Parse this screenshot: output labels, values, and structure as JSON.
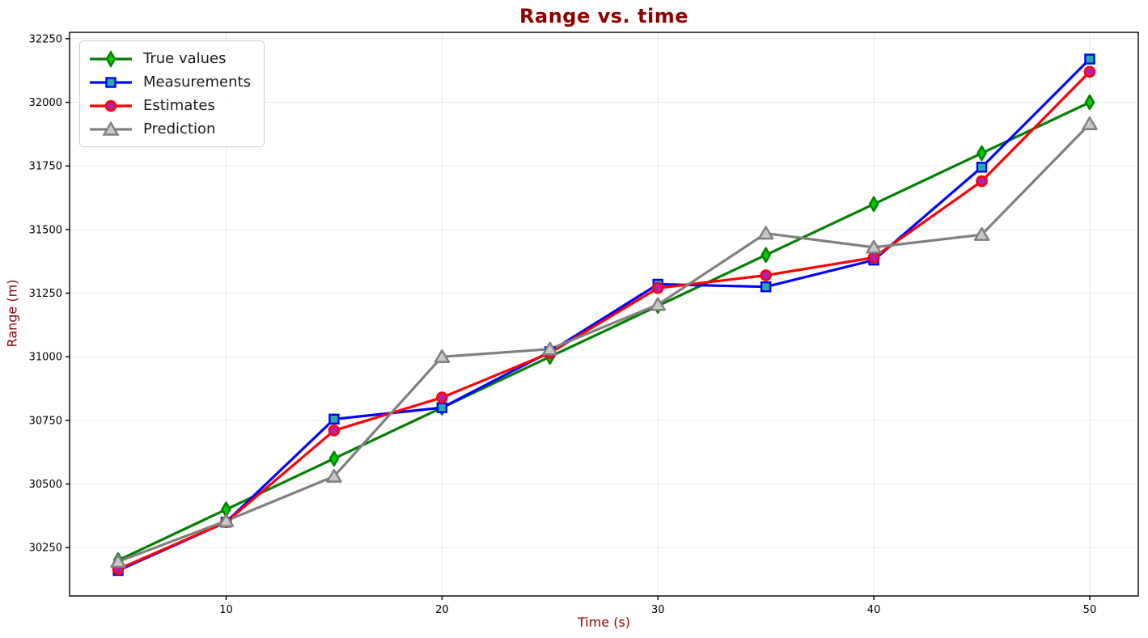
{
  "chart_data": {
    "type": "line",
    "title": "Range vs. time",
    "xlabel": "Time (s)",
    "ylabel": "Range (m)",
    "x": [
      5,
      10,
      15,
      20,
      25,
      30,
      35,
      40,
      45,
      50
    ],
    "xlim": [
      2.75,
      52.25
    ],
    "ylim": [
      30060,
      32275
    ],
    "xticks": [
      10,
      20,
      30,
      40,
      50
    ],
    "yticks": [
      30250,
      30500,
      30750,
      31000,
      31250,
      31500,
      31750,
      32000,
      32250
    ],
    "grid": true,
    "legend_position": "upper-left",
    "series": [
      {
        "name": "True values",
        "color": "#008000",
        "marker": "thin-diamond",
        "marker_face": "#00CC00",
        "values": [
          30200,
          30400,
          30600,
          30800,
          31000,
          31200,
          31400,
          31600,
          31800,
          32000
        ]
      },
      {
        "name": "Measurements",
        "color": "#0000FF",
        "marker": "square",
        "marker_face": "#20B2AA",
        "values": [
          30160,
          30350,
          30755,
          30800,
          31020,
          31285,
          31275,
          31380,
          31745,
          32170
        ]
      },
      {
        "name": "Estimates",
        "color": "#FF0000",
        "marker": "circle",
        "marker_face": "#B220B2",
        "values": [
          30165,
          30350,
          30710,
          30840,
          31015,
          31270,
          31320,
          31390,
          31690,
          32120
        ]
      },
      {
        "name": "Prediction",
        "color": "#808080",
        "marker": "triangle-up",
        "marker_face": "#C8C8C8",
        "values": [
          30195,
          30355,
          30530,
          31000,
          31030,
          31205,
          31485,
          31430,
          31480,
          31915
        ]
      }
    ],
    "colors": {
      "title": "#8B0000",
      "axis_label": "#8B0000",
      "tick_label": "#000000",
      "grid": "#E9E9E9",
      "spine": "#000000",
      "legend_border": "#CCCCCC",
      "background": "#FFFFFF"
    }
  }
}
